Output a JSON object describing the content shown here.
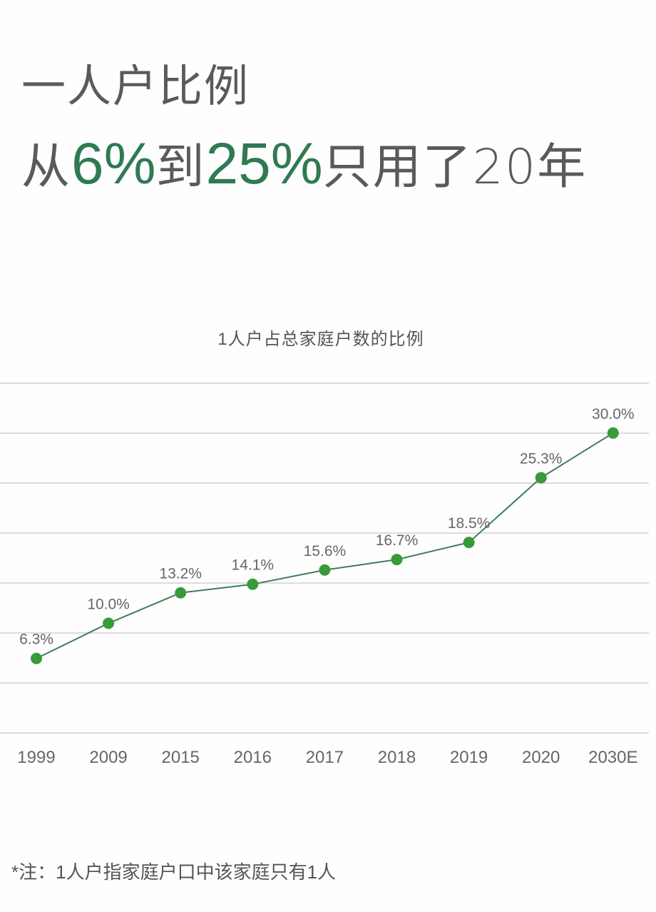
{
  "headline": {
    "line1": "一人户比例",
    "line2_prefix": "从",
    "line2_value1": "6%",
    "line2_mid": "到",
    "line2_value2": "25%",
    "line2_suffix": "只用了20年"
  },
  "note": "*注：1人户指家庭户口中该家庭只有1人",
  "colors": {
    "accent_text": "#2f7a52",
    "marker": "#3a9a3a",
    "line": "#3f7d5a",
    "grid": "#dcdcdc",
    "label": "#666666"
  },
  "chart_data": {
    "type": "line",
    "title": "1人户占总家庭户数的比例",
    "xlabel": "",
    "ylabel": "",
    "categories": [
      "1999",
      "2009",
      "2015",
      "2016",
      "2017",
      "2018",
      "2019",
      "2020",
      "2030E"
    ],
    "series": [
      {
        "name": "1人户占总家庭户数的比例",
        "values": [
          6.3,
          10.0,
          13.2,
          14.1,
          15.6,
          16.7,
          18.5,
          25.3,
          30.0
        ],
        "labels": [
          "6.3%",
          "10.0%",
          "13.2%",
          "14.1%",
          "15.6%",
          "16.7%",
          "18.5%",
          "25.3%",
          "30.0%"
        ]
      }
    ],
    "grid": true,
    "gridlines": 8,
    "legend": "none",
    "data_labels": true
  }
}
